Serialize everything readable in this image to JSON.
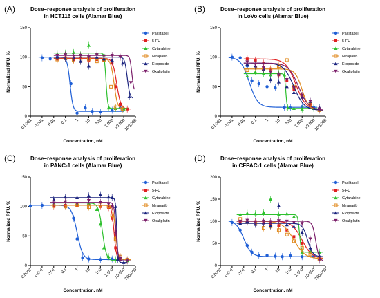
{
  "chart_data": [
    {
      "panel": "(A)",
      "type": "line",
      "title_lines": [
        "Dose–response analysis of proliferation",
        "in HCT116 cells (Alamar Blue)"
      ],
      "title": "Dose–response analysis of proliferation in HCT116 cells (Alamar Blue)",
      "xlabel": "Concentration, nM",
      "ylabel": "Normalized RFU, %",
      "xscale": "log",
      "xlim": [
        0.0001,
        100000
      ],
      "xticks": [
        "0.0001",
        "0.001",
        "0.01",
        "0.1",
        "1",
        "10",
        "100",
        "1,000",
        "10,000",
        "100,000"
      ],
      "ylim": [
        0,
        150
      ],
      "yticks": [
        "0",
        "50",
        "100",
        "150"
      ],
      "legend": "right",
      "grid": false,
      "series": [
        {
          "name": "Paclitaxel",
          "color": "#1f5fd6",
          "marker": "circle",
          "top": 100,
          "bottom": 8,
          "ec50": 0.25,
          "hill": 3.5,
          "x": [
            0.001,
            0.005,
            0.02,
            0.1,
            0.3,
            1,
            5,
            20,
            100,
            1000,
            5000
          ],
          "y": [
            99,
            97,
            100,
            98,
            55,
            5,
            14,
            8,
            7,
            10,
            14
          ]
        },
        {
          "name": "5-FU",
          "color": "#e02020",
          "marker": "square",
          "top": 98,
          "bottom": 12,
          "ec50": 2500,
          "hill": 2.5,
          "x": [
            0.02,
            0.1,
            0.5,
            2,
            10,
            50,
            200,
            1000,
            2000,
            5000,
            20000
          ],
          "y": [
            97,
            99,
            96,
            98,
            95,
            96,
            94,
            90,
            50,
            20,
            12
          ]
        },
        {
          "name": "Cytarabine",
          "color": "#2ec02e",
          "marker": "triangle",
          "top": 107,
          "bottom": 13,
          "ec50": 300,
          "hill": 6,
          "x": [
            0.02,
            0.1,
            0.5,
            2,
            10,
            50,
            200,
            500,
            2000,
            10000
          ],
          "y": [
            105,
            107,
            108,
            104,
            120,
            106,
            104,
            14,
            13,
            12
          ]
        },
        {
          "name": "Niraparib",
          "color": "#e08a1e",
          "marker": "square-open",
          "top": 97,
          "bottom": 12,
          "ec50": 1500,
          "hill": 3,
          "x": [
            0.02,
            0.1,
            0.5,
            2,
            10,
            50,
            200,
            800,
            2000,
            8000
          ],
          "y": [
            96,
            98,
            95,
            94,
            97,
            93,
            95,
            50,
            15,
            12
          ]
        },
        {
          "name": "Etoposide",
          "color": "#1a237e",
          "marker": "triangle",
          "top": 100,
          "bottom": 30,
          "ec50": 20000,
          "hill": 4,
          "x": [
            0.02,
            0.1,
            0.5,
            2,
            10,
            50,
            200,
            1000,
            8000,
            30000
          ],
          "y": [
            100,
            98,
            99,
            93,
            85,
            100,
            97,
            95,
            90,
            33
          ]
        },
        {
          "name": "Oxaliplatin",
          "color": "#7b1f6a",
          "marker": "triangle-down",
          "top": 103,
          "bottom": 40,
          "ec50": 50000,
          "hill": 5,
          "x": [
            0.02,
            0.1,
            0.5,
            2,
            10,
            50,
            200,
            1000,
            5000,
            40000
          ],
          "y": [
            103,
            104,
            102,
            103,
            100,
            104,
            102,
            103,
            100,
            57
          ]
        }
      ]
    },
    {
      "panel": "(B)",
      "type": "line",
      "title_lines": [
        "Dose–response analysis of proliferation",
        "in LoVo cells (Alamar Blue)"
      ],
      "title": "Dose–response analysis of proliferation in LoVo cells (Alamar Blue)",
      "xlabel": "Concentration, nM",
      "ylabel": "Normalized RFU, %",
      "xscale": "log",
      "xlim": [
        0.0001,
        100000
      ],
      "xticks": [
        "0.0001",
        "0.001",
        "0.01",
        "0.1",
        "1",
        "10",
        "100",
        "1,000",
        "10,000",
        "100,000"
      ],
      "ylim": [
        0,
        150
      ],
      "yticks": [
        "0",
        "50",
        "100",
        "150"
      ],
      "legend": "right",
      "grid": false,
      "series": [
        {
          "name": "Paclitaxel",
          "color": "#1f5fd6",
          "marker": "circle",
          "top": 100,
          "bottom": 15,
          "ec50": 0.03,
          "hill": 1.2,
          "x": [
            0.001,
            0.005,
            0.02,
            0.05,
            0.2,
            1,
            5,
            30,
            100,
            1000,
            10000
          ],
          "y": [
            100,
            99,
            85,
            60,
            55,
            50,
            48,
            15,
            14,
            16,
            15
          ]
        },
        {
          "name": "5-FU",
          "color": "#e02020",
          "marker": "square",
          "top": 97,
          "bottom": 10,
          "ec50": 300,
          "hill": 1,
          "x": [
            0.02,
            0.1,
            0.5,
            2,
            10,
            50,
            200,
            1000,
            5000,
            30000
          ],
          "y": [
            97,
            95,
            90,
            80,
            70,
            60,
            45,
            35,
            20,
            12
          ]
        },
        {
          "name": "Cytarabine",
          "color": "#2ec02e",
          "marker": "triangle",
          "top": 72,
          "bottom": 13,
          "ec50": 40,
          "hill": 8,
          "x": [
            0.02,
            0.1,
            0.5,
            2,
            10,
            30,
            60,
            200,
            1000,
            10000
          ],
          "y": [
            68,
            75,
            72,
            70,
            73,
            70,
            14,
            13,
            12,
            13
          ]
        },
        {
          "name": "Niraparib",
          "color": "#e08a1e",
          "marker": "square-open",
          "top": 80,
          "bottom": 10,
          "ec50": 1000,
          "hill": 1.5,
          "x": [
            0.02,
            0.1,
            0.5,
            2,
            10,
            50,
            200,
            1000,
            5000,
            30000
          ],
          "y": [
            78,
            82,
            80,
            79,
            85,
            95,
            50,
            35,
            20,
            10
          ]
        },
        {
          "name": "Etoposide",
          "color": "#1a237e",
          "marker": "triangle",
          "top": 90,
          "bottom": 10,
          "ec50": 200,
          "hill": 1,
          "x": [
            0.02,
            0.1,
            0.5,
            2,
            10,
            50,
            200,
            1000,
            5000,
            30000
          ],
          "y": [
            88,
            85,
            80,
            62,
            58,
            50,
            40,
            32,
            25,
            15
          ]
        },
        {
          "name": "Oxaliplatin",
          "color": "#7b1f6a",
          "marker": "triangle-down",
          "top": 90,
          "bottom": 10,
          "ec50": 500,
          "hill": 1,
          "x": [
            0.02,
            0.1,
            0.5,
            2,
            10,
            50,
            200,
            1000,
            5000,
            30000
          ],
          "y": [
            92,
            88,
            82,
            75,
            70,
            62,
            48,
            35,
            25,
            12
          ]
        }
      ]
    },
    {
      "panel": "(C)",
      "type": "line",
      "title_lines": [
        "Dose–response analysis of proliferation",
        "in PANC-1 cells (Alamar Blue)"
      ],
      "title": "Dose–response analysis of proliferation in PANC-1 cells (Alamar Blue)",
      "xlabel": "Concentration, nM",
      "ylabel": "Normalized RFU, %",
      "xscale": "log",
      "xlim": [
        0.0001,
        100000
      ],
      "xticks": [
        "0.0001",
        "0.001",
        "0.01",
        "0.1",
        "1",
        "10",
        "100",
        "1,000",
        "10,000",
        "100,000"
      ],
      "ylim": [
        0,
        150
      ],
      "yticks": [
        "0",
        "50",
        "100",
        "150"
      ],
      "legend": "right",
      "grid": false,
      "series": [
        {
          "name": "Paclitaxel",
          "color": "#1f5fd6",
          "marker": "circle",
          "top": 102,
          "bottom": 10,
          "ec50": 1,
          "hill": 1.8,
          "x": [
            0.0001,
            0.001,
            0.01,
            0.1,
            0.5,
            1,
            3,
            10,
            100,
            1000,
            5000
          ],
          "y": [
            101,
            102,
            104,
            100,
            80,
            45,
            13,
            11,
            10,
            11,
            12
          ]
        },
        {
          "name": "5-FU",
          "color": "#e02020",
          "marker": "square",
          "top": 102,
          "bottom": 8,
          "ec50": 1500,
          "hill": 4,
          "x": [
            0.01,
            0.1,
            1,
            10,
            100,
            500,
            1000,
            2000,
            5000,
            20000
          ],
          "y": [
            100,
            102,
            101,
            103,
            100,
            98,
            80,
            30,
            12,
            8
          ]
        },
        {
          "name": "Cytarabine",
          "color": "#2ec02e",
          "marker": "triangle",
          "top": 106,
          "bottom": 8,
          "ec50": 150,
          "hill": 2.5,
          "x": [
            0.01,
            0.1,
            1,
            10,
            50,
            100,
            200,
            500,
            2000,
            20000
          ],
          "y": [
            105,
            108,
            104,
            106,
            95,
            70,
            30,
            15,
            10,
            8
          ]
        },
        {
          "name": "Niraparib",
          "color": "#e08a1e",
          "marker": "square-open",
          "top": 102,
          "bottom": 10,
          "ec50": 2000,
          "hill": 4,
          "x": [
            0.01,
            0.1,
            1,
            10,
            100,
            500,
            1000,
            2000,
            5000,
            20000
          ],
          "y": [
            101,
            100,
            102,
            99,
            103,
            100,
            85,
            45,
            15,
            10
          ]
        },
        {
          "name": "Etoposide",
          "color": "#1a237e",
          "marker": "triangle",
          "top": 115,
          "bottom": 5,
          "ec50": 2500,
          "hill": 8,
          "x": [
            0.01,
            0.1,
            1,
            10,
            100,
            500,
            1000,
            2000,
            3000,
            10000
          ],
          "y": [
            112,
            116,
            115,
            118,
            120,
            116,
            115,
            100,
            10,
            5
          ]
        },
        {
          "name": "Oxaliplatin",
          "color": "#7b1f6a",
          "marker": "triangle-down",
          "top": 107,
          "bottom": 8,
          "ec50": 2200,
          "hill": 5,
          "x": [
            0.01,
            0.1,
            1,
            10,
            100,
            500,
            1000,
            2000,
            5000,
            20000
          ],
          "y": [
            106,
            108,
            105,
            110,
            107,
            104,
            100,
            55,
            12,
            8
          ]
        }
      ]
    },
    {
      "panel": "(D)",
      "type": "line",
      "title_lines": [
        "Dose–response analysis of proliferation",
        "in CFPAC-1 cells (Alamar Blue)"
      ],
      "title": "Dose–response analysis of proliferation in CFPAC-1 cells (Alamar Blue)",
      "xlabel": "Concentration, nM",
      "ylabel": "Normalized RFU, %",
      "xscale": "log",
      "xlim": [
        0.0001,
        100000
      ],
      "xticks": [
        "0.0001",
        "0.001",
        "0.01",
        "0.1",
        "1",
        "10",
        "100",
        "1,000",
        "10,000",
        "100,000"
      ],
      "ylim": [
        0,
        200
      ],
      "yticks": [
        "0",
        "50",
        "100",
        "150",
        "200"
      ],
      "legend": "right",
      "grid": false,
      "series": [
        {
          "name": "Paclitaxel",
          "color": "#1f5fd6",
          "marker": "circle",
          "top": 102,
          "bottom": 20,
          "ec50": 0.01,
          "hill": 1.3,
          "x": [
            0.001,
            0.005,
            0.02,
            0.05,
            0.2,
            1,
            5,
            20,
            100,
            1000,
            10000
          ],
          "y": [
            97,
            80,
            45,
            30,
            22,
            23,
            21,
            20,
            22,
            20,
            21
          ]
        },
        {
          "name": "5-FU",
          "color": "#e02020",
          "marker": "square",
          "top": 100,
          "bottom": 15,
          "ec50": 1000,
          "hill": 1,
          "x": [
            0.005,
            0.02,
            0.1,
            0.5,
            2,
            10,
            50,
            200,
            1000,
            5000,
            30000
          ],
          "y": [
            100,
            98,
            99,
            97,
            95,
            90,
            80,
            65,
            50,
            30,
            15
          ]
        },
        {
          "name": "Cytarabine",
          "color": "#2ec02e",
          "marker": "triangle",
          "top": 115,
          "bottom": 30,
          "ec50": 600,
          "hill": 6,
          "x": [
            0.005,
            0.02,
            0.1,
            0.5,
            2,
            10,
            50,
            200,
            1000,
            5000,
            30000
          ],
          "y": [
            115,
            118,
            117,
            120,
            150,
            115,
            117,
            110,
            30,
            32,
            30
          ]
        },
        {
          "name": "Niraparib",
          "color": "#e08a1e",
          "marker": "square-open",
          "top": 100,
          "bottom": 15,
          "ec50": 200,
          "hill": 0.9,
          "x": [
            0.005,
            0.02,
            0.1,
            0.5,
            2,
            10,
            50,
            200,
            1000,
            5000,
            30000
          ],
          "y": [
            105,
            98,
            95,
            85,
            88,
            80,
            70,
            55,
            40,
            25,
            15
          ]
        },
        {
          "name": "Etoposide",
          "color": "#1a237e",
          "marker": "triangle",
          "top": 95,
          "bottom": 20,
          "ec50": 3000,
          "hill": 2,
          "x": [
            0.005,
            0.02,
            0.1,
            0.5,
            2,
            10,
            50,
            200,
            1000,
            5000,
            30000
          ],
          "y": [
            95,
            100,
            93,
            96,
            90,
            135,
            92,
            88,
            75,
            40,
            22
          ]
        },
        {
          "name": "Oxaliplatin",
          "color": "#7b1f6a",
          "marker": "triangle-down",
          "top": 100,
          "bottom": 10,
          "ec50": 15000,
          "hill": 3,
          "x": [
            0.005,
            0.02,
            0.1,
            0.5,
            2,
            10,
            50,
            200,
            1000,
            5000,
            30000
          ],
          "y": [
            100,
            102,
            98,
            100,
            99,
            101,
            100,
            97,
            95,
            60,
            12
          ]
        }
      ]
    }
  ]
}
